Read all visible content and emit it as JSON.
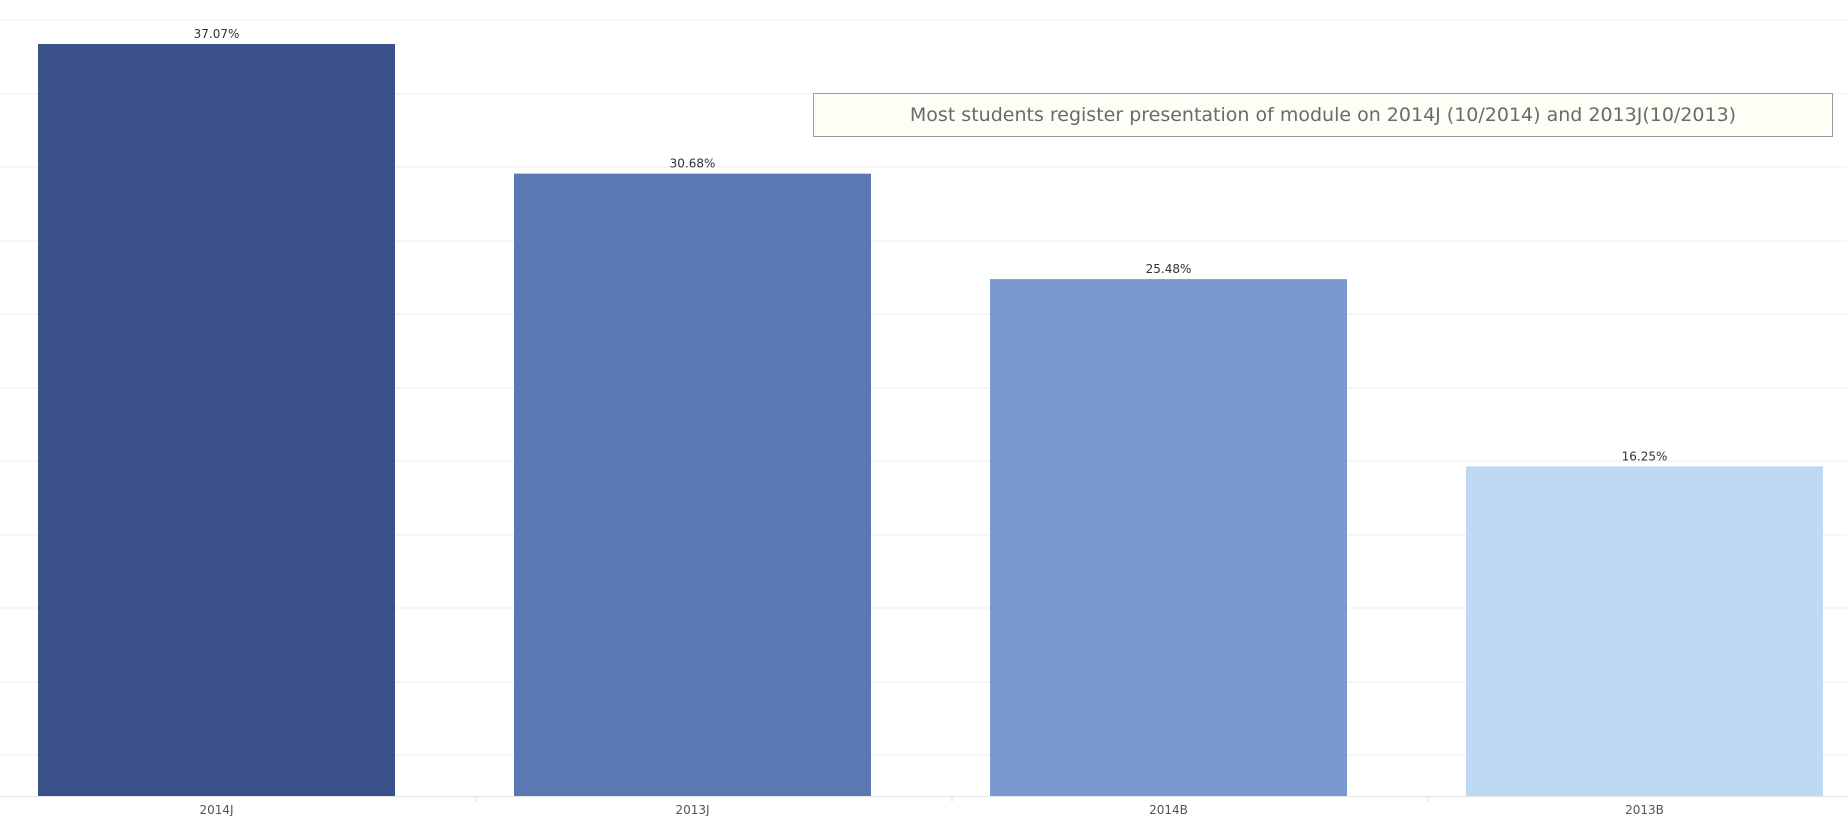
{
  "chart_data": {
    "type": "bar",
    "categories": [
      "2014J",
      "2013J",
      "2014B",
      "2013B"
    ],
    "values": [
      37.07,
      30.68,
      25.48,
      16.25
    ],
    "data_labels": [
      "37.07%",
      "30.68%",
      "25.48%",
      "16.25%"
    ],
    "colors": [
      "#3a5289",
      "#5b78b3",
      "#7a99ce",
      "#bfd9f3"
    ],
    "annotation": "Most students register presentation of module on 2014J (10/2014) and 2013J(10/2013)",
    "ylim": [
      0,
      38
    ],
    "grid": true,
    "title": "",
    "xlabel": "",
    "ylabel": ""
  }
}
